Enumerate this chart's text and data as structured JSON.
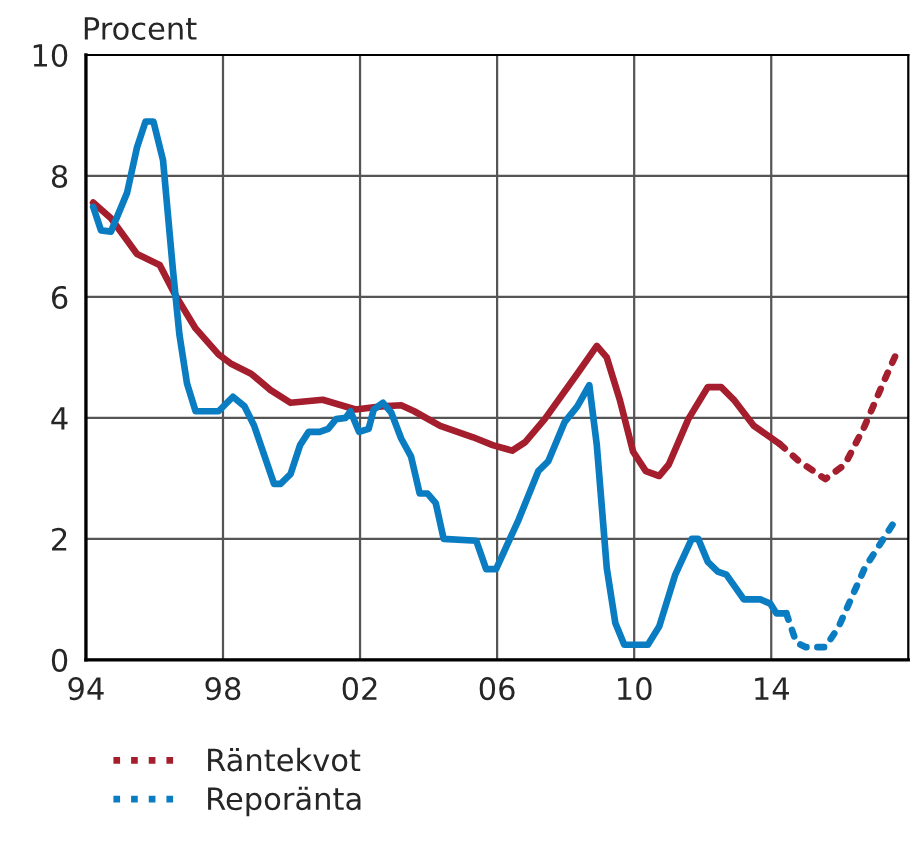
{
  "chart_data": {
    "type": "line",
    "ylabel": "Procent",
    "xlim": [
      1994,
      2018
    ],
    "ylim": [
      0,
      10
    ],
    "xticks": [
      {
        "value": 1994,
        "label": "94"
      },
      {
        "value": 1998,
        "label": "98"
      },
      {
        "value": 2002,
        "label": "02"
      },
      {
        "value": 2006,
        "label": "06"
      },
      {
        "value": 2010,
        "label": "10"
      },
      {
        "value": 2014,
        "label": "14"
      }
    ],
    "yticks": [
      0,
      2,
      4,
      6,
      8,
      10
    ],
    "grid": true,
    "legend": "bottom",
    "series": [
      {
        "color": "#a51e2d",
        "line_style": "solid",
        "x": [
          1994.21,
          1994.73,
          1995.49,
          1996.15,
          1996.63,
          1997.2,
          1997.87,
          1998.25,
          1998.82,
          1999.39,
          1999.97,
          2000.91,
          2001.87,
          2002.63,
          2003.2,
          2003.58,
          2004.34,
          2005.3,
          2005.87,
          2006.44,
          2006.82,
          2007.39,
          2008.34,
          2008.91,
          2009.2,
          2009.58,
          2009.97,
          2010.34,
          2010.73,
          2011.01,
          2011.58,
          2012.15,
          2012.54,
          2012.91,
          2013.49,
          2014.25
        ],
        "values": [
          7.56,
          7.3,
          6.71,
          6.53,
          6.01,
          5.48,
          5.05,
          4.89,
          4.73,
          4.46,
          4.25,
          4.3,
          4.14,
          4.19,
          4.21,
          4.11,
          3.87,
          3.68,
          3.55,
          3.46,
          3.6,
          3.98,
          4.73,
          5.19,
          5.0,
          4.3,
          3.44,
          3.12,
          3.04,
          3.23,
          3.98,
          4.51,
          4.51,
          4.3,
          3.87,
          3.57
        ]
      },
      {
        "name": "Räntekvot",
        "color": "#a51e2d",
        "line_style": "dotted",
        "x": [
          2014.25,
          2014.82,
          2015.58,
          2016.15,
          2016.73,
          2017.3,
          2017.68
        ],
        "values": [
          3.57,
          3.28,
          2.99,
          3.23,
          3.87,
          4.62,
          5.1
        ]
      },
      {
        "color": "#0a7cc1",
        "line_style": "solid",
        "x": [
          1994.21,
          1994.44,
          1994.73,
          1995.2,
          1995.49,
          1995.74,
          1995.97,
          1996.25,
          1996.54,
          1996.73,
          1996.95,
          1997.2,
          1997.87,
          1998.29,
          1998.63,
          1998.91,
          1999.49,
          1999.68,
          1999.97,
          2000.25,
          2000.5,
          2000.82,
          2001.07,
          2001.3,
          2001.58,
          2001.72,
          2001.97,
          2002.25,
          2002.4,
          2002.67,
          2002.91,
          2003.2,
          2003.49,
          2003.74,
          2003.97,
          2004.21,
          2004.44,
          2005.39,
          2005.68,
          2005.97,
          2006.63,
          2007.2,
          2007.49,
          2007.97,
          2008.34,
          2008.69,
          2008.91,
          2009.2,
          2009.45,
          2009.71,
          2010.4,
          2010.73,
          2011.2,
          2011.68,
          2011.87,
          2012.15,
          2012.44,
          2012.69,
          2013.2,
          2013.68,
          2013.97,
          2014.15,
          2014.44
        ],
        "values": [
          7.49,
          7.1,
          7.08,
          7.72,
          8.47,
          8.9,
          8.9,
          8.26,
          6.44,
          5.37,
          4.57,
          4.11,
          4.11,
          4.35,
          4.19,
          3.87,
          2.91,
          2.91,
          3.07,
          3.55,
          3.77,
          3.77,
          3.82,
          3.98,
          4.0,
          4.11,
          3.77,
          3.82,
          4.14,
          4.25,
          4.09,
          3.66,
          3.36,
          2.75,
          2.75,
          2.59,
          2.0,
          1.97,
          1.5,
          1.5,
          2.32,
          3.12,
          3.28,
          3.93,
          4.19,
          4.54,
          3.55,
          1.52,
          0.61,
          0.25,
          0.25,
          0.55,
          1.41,
          2.0,
          2.0,
          1.62,
          1.46,
          1.41,
          1.0,
          1.0,
          0.93,
          0.77,
          0.77
        ]
      },
      {
        "name": "Reporänta",
        "color": "#0a7cc1",
        "line_style": "dotted",
        "x": [
          2014.44,
          2014.73,
          2015.01,
          2015.58,
          2015.97,
          2016.73,
          2017.68
        ],
        "values": [
          0.77,
          0.29,
          0.21,
          0.21,
          0.55,
          1.52,
          2.36
        ]
      }
    ]
  }
}
